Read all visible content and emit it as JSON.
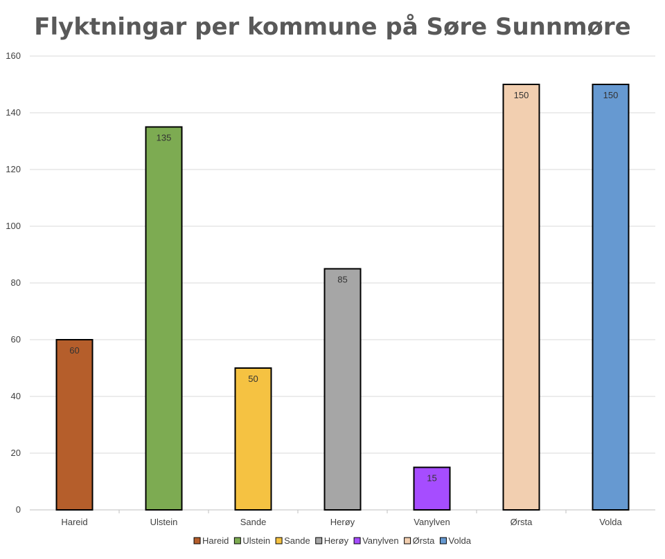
{
  "chart_data": {
    "type": "bar",
    "title": "Flyktningar per kommune på Søre Sunnmøre",
    "categories": [
      "Hareid",
      "Ulstein",
      "Sande",
      "Herøy",
      "Vanylven",
      "Ørsta",
      "Volda"
    ],
    "values": [
      60,
      135,
      50,
      85,
      15,
      150,
      150
    ],
    "data_labels": [
      "60",
      "135",
      "50",
      "85",
      "15",
      "150",
      "150"
    ],
    "colors": [
      "#b55e2b",
      "#7dab52",
      "#f5c242",
      "#a6a6a6",
      "#a64dff",
      "#f2cfb0",
      "#6699d1"
    ],
    "ylim": [
      0,
      160
    ],
    "yticks": [
      "0",
      "20",
      "40",
      "60",
      "80",
      "100",
      "120",
      "140",
      "160"
    ],
    "grid": true,
    "legend": {
      "position": "bottom",
      "entries": [
        "Hareid",
        "Ulstein",
        "Sande",
        "Herøy",
        "Vanylven",
        "Ørsta",
        "Volda"
      ]
    },
    "bar_outline_color": "#000000"
  }
}
